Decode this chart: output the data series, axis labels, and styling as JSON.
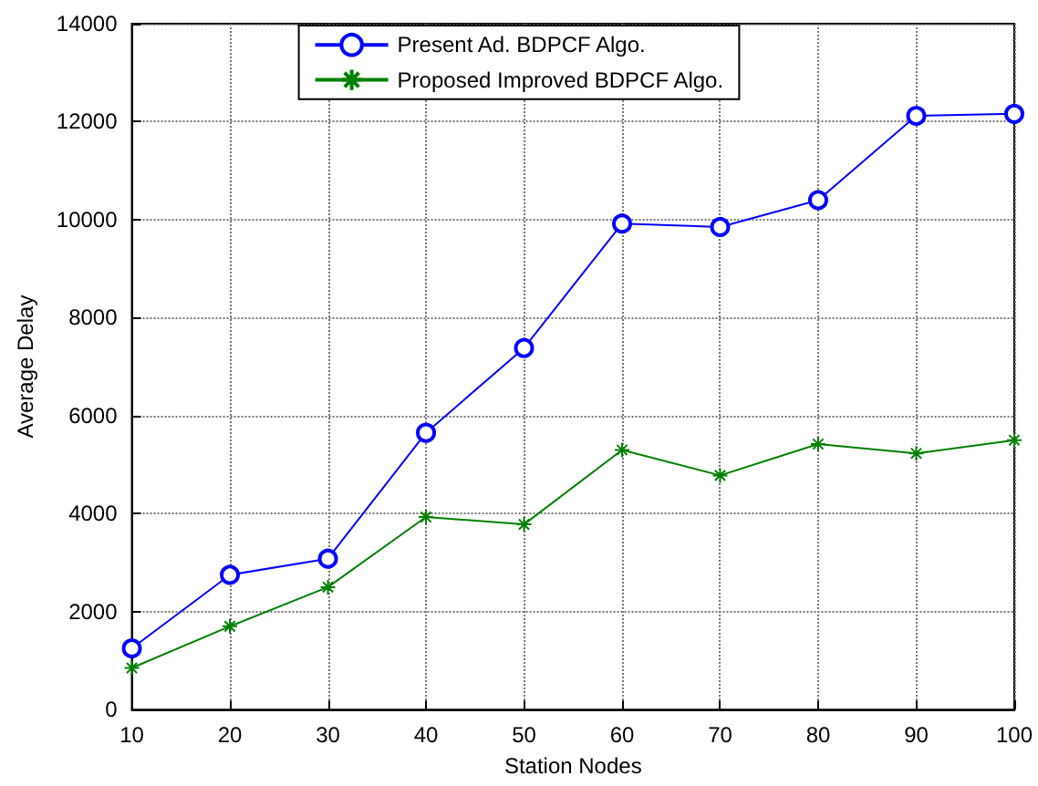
{
  "chart_data": {
    "type": "line",
    "xlabel": "Station Nodes",
    "ylabel": "Average Delay",
    "x": [
      10,
      20,
      30,
      40,
      50,
      60,
      70,
      80,
      90,
      100
    ],
    "xlim": [
      10,
      100
    ],
    "xticks": [
      10,
      20,
      30,
      40,
      50,
      60,
      70,
      80,
      90,
      100
    ],
    "ylim": [
      0,
      14000
    ],
    "yticks": [
      0,
      2000,
      4000,
      6000,
      8000,
      10000,
      12000,
      14000
    ],
    "grid": true,
    "legend": "top",
    "line_style": "solid",
    "series": [
      {
        "name": "Present Ad. BDPCF Algo.",
        "color": "#0000ff",
        "marker": "circle",
        "values": [
          1250,
          2750,
          3080,
          5650,
          7380,
          9920,
          9850,
          10400,
          12120,
          12160
        ]
      },
      {
        "name": "Proposed Improved BDPCF Algo.",
        "color": "#008000",
        "marker": "cross",
        "values": [
          850,
          1700,
          2500,
          3930,
          3780,
          5300,
          4780,
          5420,
          5230,
          5500
        ]
      }
    ]
  }
}
